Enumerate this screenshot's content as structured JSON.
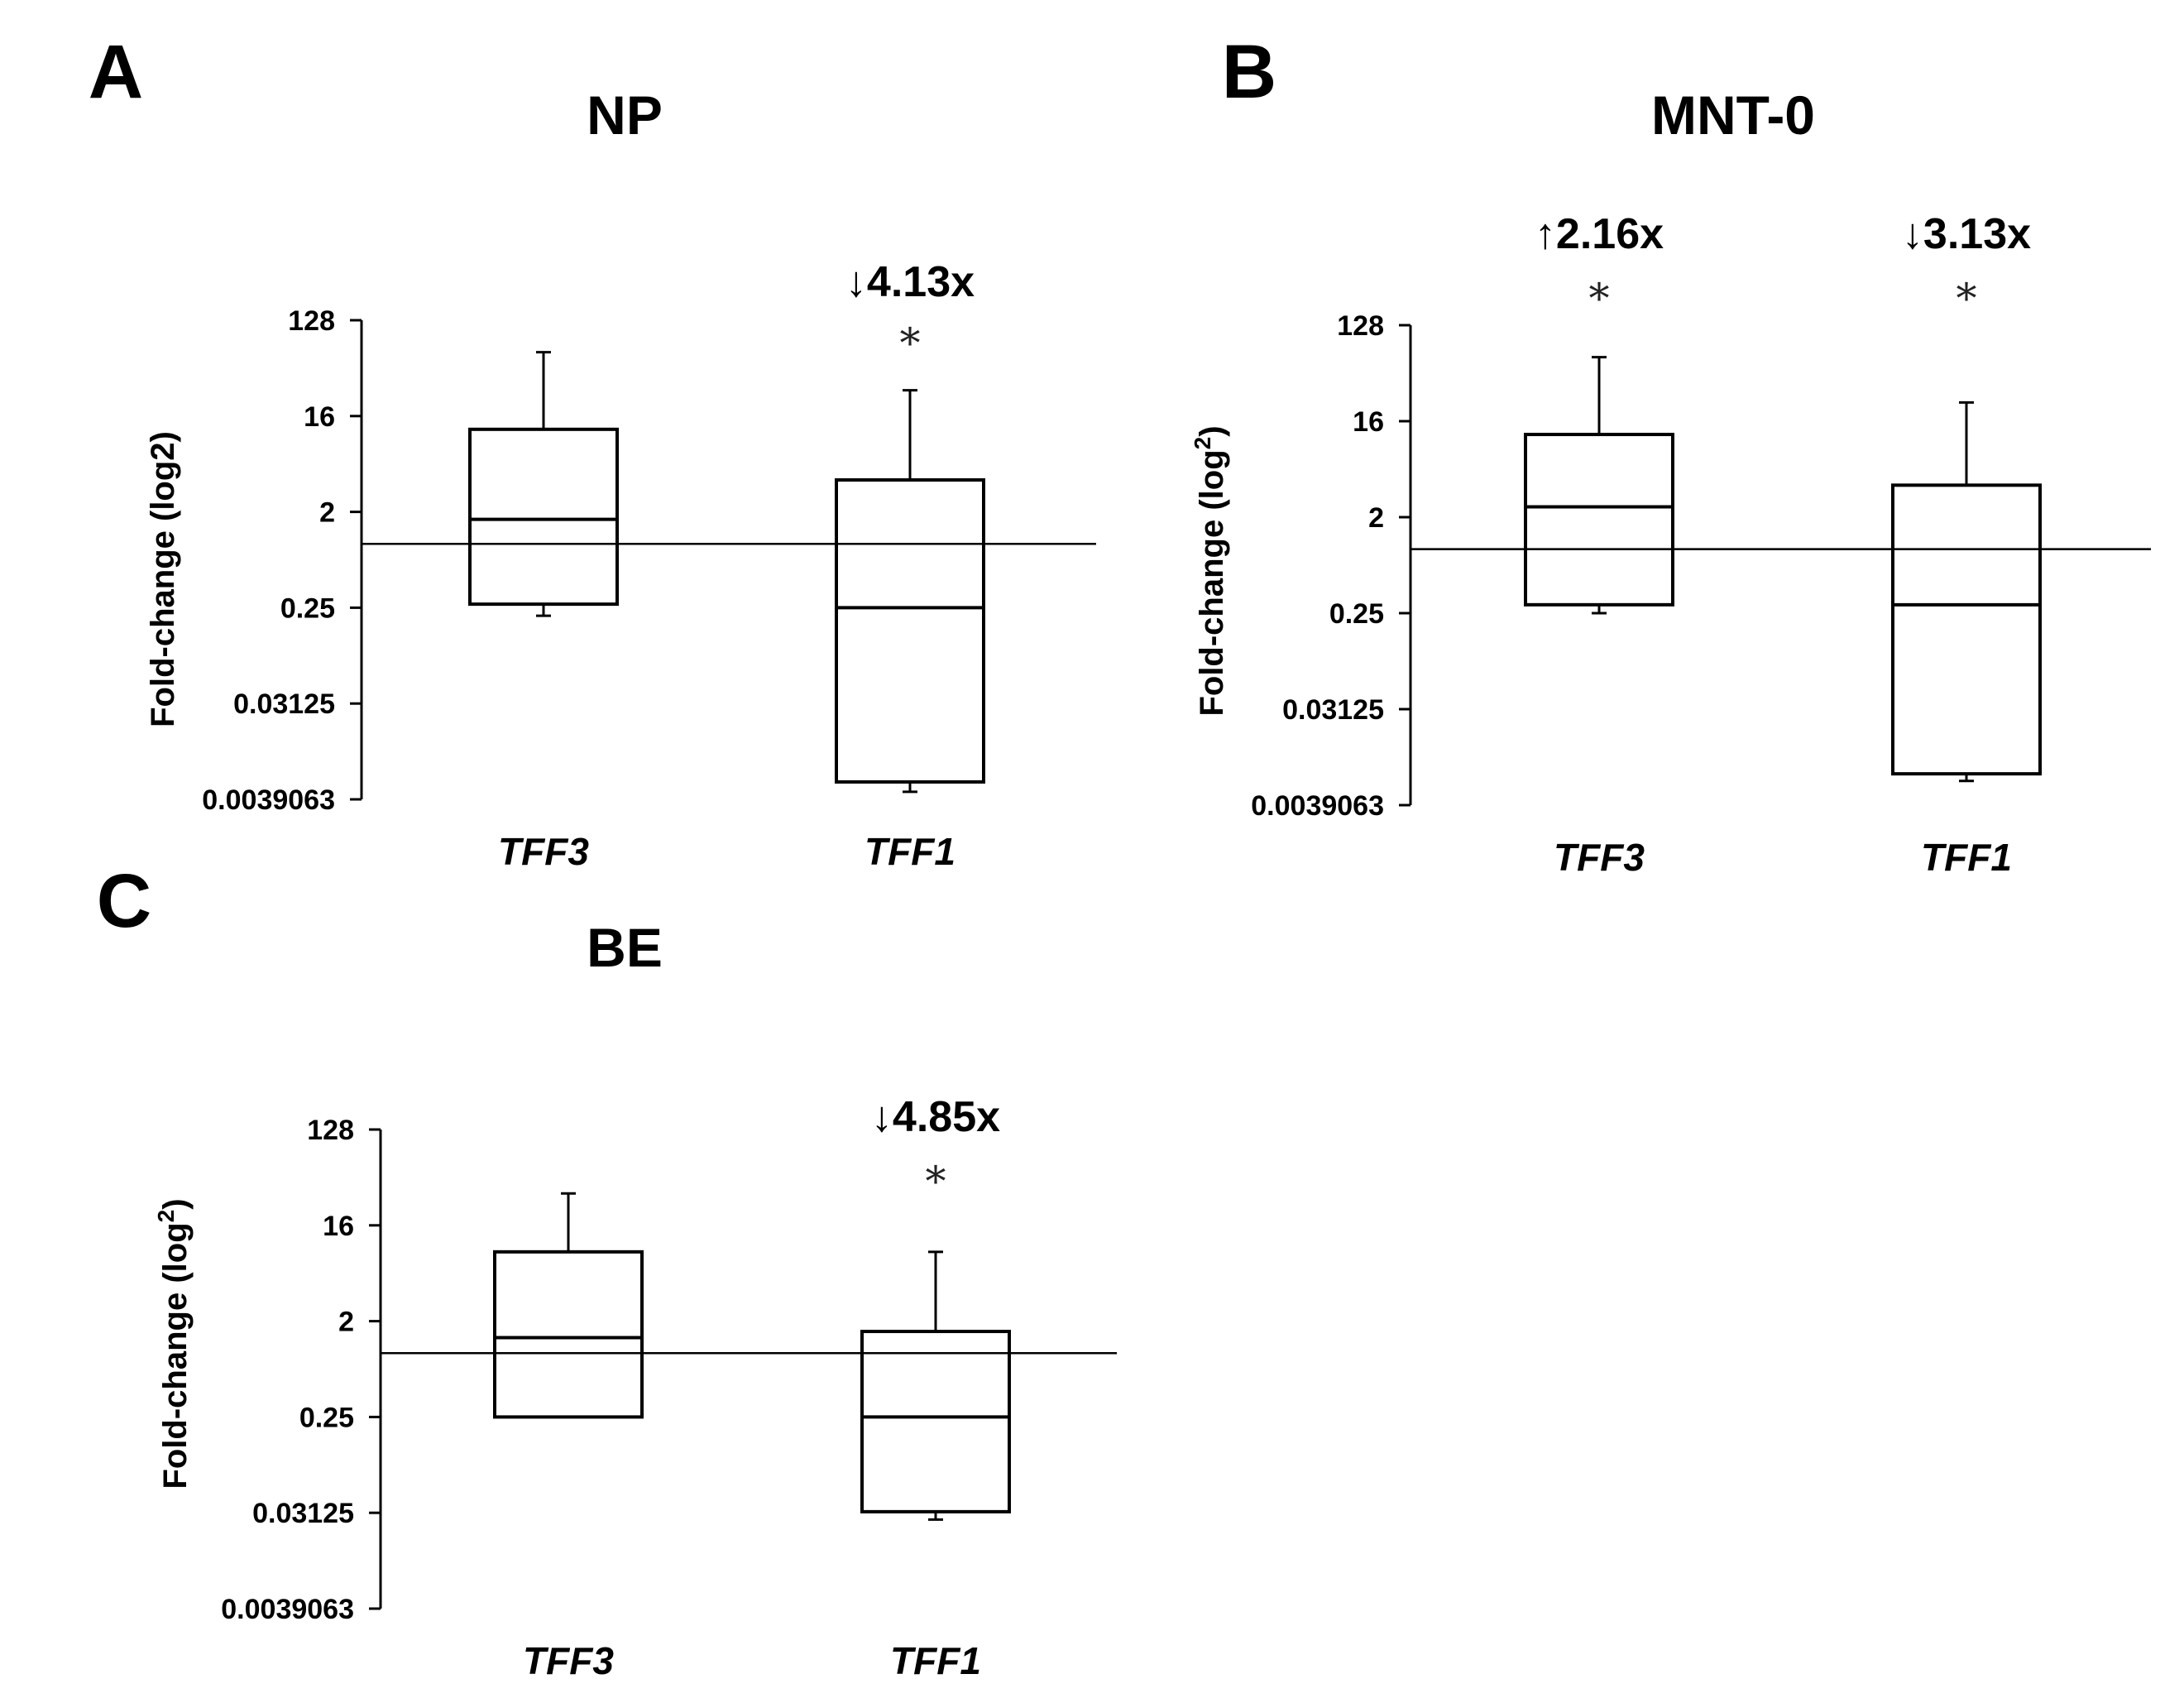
{
  "chart_data": [
    {
      "type": "box",
      "panel": "A",
      "title": "NP",
      "ylabel": "Fold-change (log2)",
      "ylabel_sup": "",
      "yscale": "log2",
      "ylim": [
        0.0039063,
        128
      ],
      "yticks": [
        "128",
        "16",
        "2",
        "0.25",
        "0.03125",
        "0.0039063"
      ],
      "reference_line": 1,
      "categories": [
        "TFF3",
        "TFF1"
      ],
      "boxes": [
        {
          "name": "TFF3",
          "min": 0.21,
          "q1": 0.27,
          "median": 1.7,
          "q3": 12,
          "max": 64,
          "fold_label": "",
          "significant": false
        },
        {
          "name": "TFF1",
          "min": 0.0046,
          "q1": 0.0057,
          "median": 0.25,
          "q3": 4,
          "max": 28,
          "fold_label": "↓4.13x",
          "significant": true
        }
      ],
      "significance_symbol": "*"
    },
    {
      "type": "box",
      "panel": "B",
      "title": "MNT-0",
      "ylabel": "Fold-change (log",
      "ylabel_sup": "2",
      "ylabel_close": ")",
      "yscale": "log2",
      "ylim": [
        0.0039063,
        128
      ],
      "yticks": [
        "128",
        "16",
        "2",
        "0.25",
        "0.03125",
        "0.0039063"
      ],
      "reference_line": 1,
      "categories": [
        "TFF3",
        "TFF1"
      ],
      "boxes": [
        {
          "name": "TFF3",
          "min": 0.25,
          "q1": 0.3,
          "median": 2.5,
          "q3": 12,
          "max": 64,
          "fold_label": "↑2.16x",
          "significant": true
        },
        {
          "name": "TFF1",
          "min": 0.0066,
          "q1": 0.0077,
          "median": 0.3,
          "q3": 4,
          "max": 24,
          "fold_label": "↓3.13x",
          "significant": true
        }
      ],
      "significance_symbol": "*"
    },
    {
      "type": "box",
      "panel": "C",
      "title": "BE",
      "ylabel": "Fold-change (log",
      "ylabel_sup": "2",
      "ylabel_close": ")",
      "yscale": "log2",
      "ylim": [
        0.0039063,
        128
      ],
      "yticks": [
        "128",
        "16",
        "2",
        "0.25",
        "0.03125",
        "0.0039063"
      ],
      "reference_line": 1,
      "categories": [
        "TFF3",
        "TFF1"
      ],
      "boxes": [
        {
          "name": "TFF3",
          "min": 0.25,
          "q1": 0.25,
          "median": 1.4,
          "q3": 9,
          "max": 32,
          "fold_label": "",
          "significant": false
        },
        {
          "name": "TFF1",
          "min": 0.027,
          "q1": 0.032,
          "median": 0.25,
          "q3": 1.6,
          "max": 9,
          "fold_label": "↓4.85x",
          "significant": true
        }
      ],
      "significance_symbol": "*"
    }
  ]
}
